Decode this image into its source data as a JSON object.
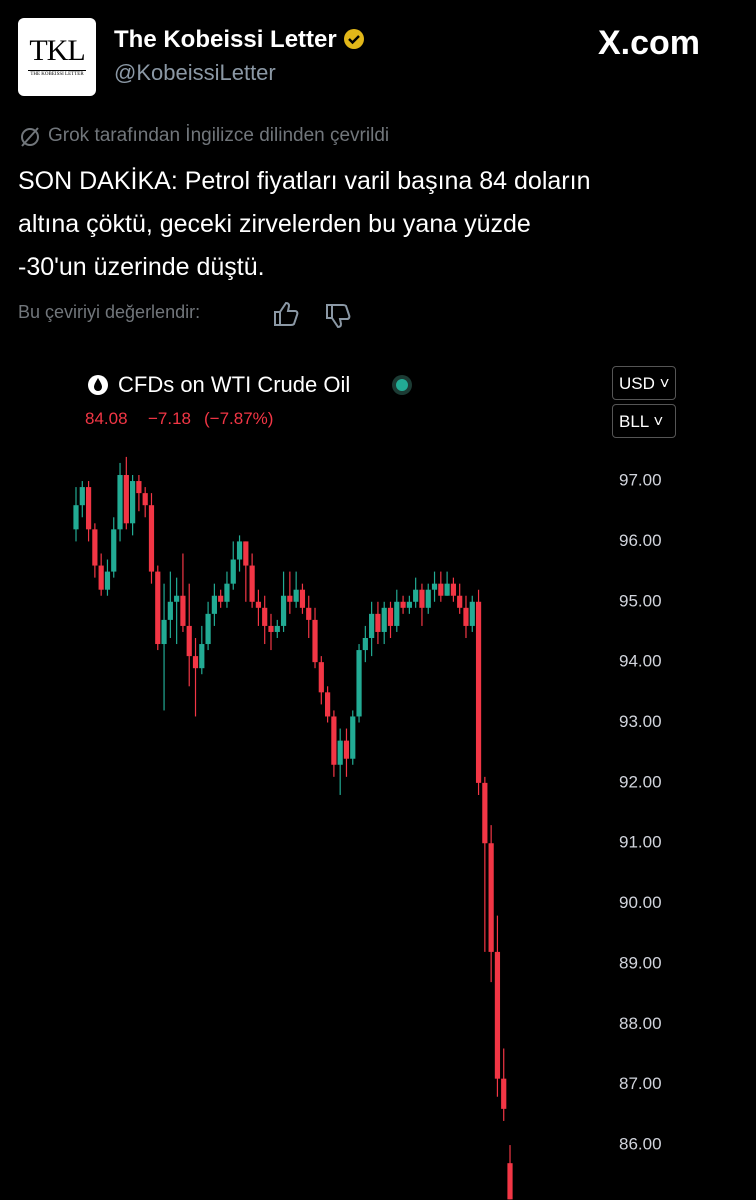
{
  "header": {
    "name": "The Kobeissi Letter",
    "handle": "@KobeissiLetter",
    "logo_text": "TKL",
    "logo_subtext": "THE KOBEISSI LETTER",
    "site": "X.com"
  },
  "tweet": {
    "translation_note": "Grok tarafından İngilizce dilinden çevrildi",
    "lines": [
      "SON DAKİKA: Petrol fiyatları varil başına 84 doların",
      "altına çöktü, geceki zirvelerden bu yana yüzde",
      "-30'un üzerinde düştü."
    ],
    "rate_prompt": "Bu çeviriyi değerlendir:"
  },
  "chart_data": {
    "type": "candlestick",
    "title": "CFDs on WTI Crude Oil",
    "quote": {
      "price": "84.08",
      "change": "−7.18",
      "change_percent": "(−7.87%)"
    },
    "currency": "USD",
    "unit": "BLL",
    "up_color": "#22ab94",
    "down_color": "#f23645",
    "ylim": [
      85.09,
      97.68
    ],
    "yticks": [
      {
        "value": 97,
        "label": "97.00"
      },
      {
        "value": 96,
        "label": "96.00"
      },
      {
        "value": 95,
        "label": "95.00"
      },
      {
        "value": 94,
        "label": "94.00"
      },
      {
        "value": 93,
        "label": "93.00"
      },
      {
        "value": 92,
        "label": "92.00"
      },
      {
        "value": 91,
        "label": "91.00"
      },
      {
        "value": 90,
        "label": "90.00"
      },
      {
        "value": 89,
        "label": "89.00"
      },
      {
        "value": 88,
        "label": "88.00"
      },
      {
        "value": 87,
        "label": "87.00"
      },
      {
        "value": 86,
        "label": "86.00"
      }
    ],
    "open": [
      96.2,
      96.6,
      96.9,
      96.2,
      95.6,
      95.2,
      95.5,
      96.2,
      97.1,
      96.3,
      97.0,
      96.8,
      96.6,
      95.5,
      94.3,
      94.7,
      95.0,
      95.1,
      94.6,
      94.1,
      93.9,
      94.3,
      94.8,
      95.1,
      95.0,
      95.3,
      95.7,
      96.0,
      95.6,
      95.0,
      94.9,
      94.6,
      94.5,
      94.6,
      95.1,
      95.0,
      95.2,
      94.9,
      94.7,
      94.0,
      93.5,
      93.1,
      92.3,
      92.7,
      92.4,
      93.1,
      94.2,
      94.4,
      94.8,
      94.5,
      94.9,
      94.6,
      95.0,
      94.9,
      95.0,
      95.2,
      94.9,
      95.2,
      95.3,
      95.1,
      95.3,
      95.1,
      94.9,
      94.6,
      95.0,
      92.0,
      91.0,
      89.2,
      87.1,
      85.7
    ],
    "high": [
      96.9,
      97.0,
      97.0,
      96.3,
      95.8,
      95.7,
      96.4,
      97.3,
      97.4,
      97.1,
      97.1,
      96.9,
      96.8,
      95.6,
      95.3,
      95.5,
      95.4,
      95.8,
      95.3,
      94.4,
      94.6,
      95.0,
      95.3,
      95.2,
      95.5,
      96.0,
      96.1,
      96.0,
      95.8,
      95.2,
      95.1,
      94.8,
      94.7,
      95.5,
      95.5,
      95.5,
      95.3,
      95.1,
      94.9,
      94.1,
      93.6,
      93.2,
      92.9,
      92.9,
      93.2,
      94.3,
      94.6,
      95.0,
      95.0,
      95.0,
      95.0,
      95.2,
      95.1,
      95.1,
      95.4,
      95.3,
      95.3,
      95.5,
      95.5,
      95.5,
      95.4,
      95.3,
      95.1,
      95.1,
      95.2,
      92.1,
      91.3,
      89.8,
      87.6,
      86.0
    ],
    "low": [
      96.0,
      96.4,
      96.0,
      95.4,
      95.1,
      95.1,
      95.4,
      96.0,
      96.2,
      96.1,
      96.5,
      96.4,
      95.3,
      94.2,
      93.2,
      94.4,
      94.3,
      94.5,
      93.6,
      93.1,
      93.8,
      94.2,
      94.6,
      94.9,
      94.9,
      95.2,
      95.5,
      95.0,
      94.9,
      94.6,
      94.3,
      94.2,
      94.4,
      94.5,
      94.8,
      94.9,
      94.8,
      94.4,
      93.9,
      93.3,
      93.0,
      92.1,
      91.8,
      92.1,
      92.3,
      93.0,
      94.0,
      94.1,
      94.3,
      94.3,
      94.4,
      94.5,
      94.8,
      94.8,
      94.9,
      94.6,
      94.8,
      95.0,
      95.0,
      95.1,
      95.0,
      94.8,
      94.4,
      94.5,
      91.8,
      89.2,
      88.7,
      86.8,
      86.4,
      85.1
    ],
    "close": [
      96.6,
      96.9,
      96.2,
      95.6,
      95.2,
      95.5,
      96.2,
      97.1,
      96.3,
      97.0,
      96.8,
      96.6,
      95.5,
      94.3,
      94.7,
      95.0,
      95.1,
      94.6,
      94.1,
      93.9,
      94.3,
      94.8,
      95.1,
      95.0,
      95.3,
      95.7,
      96.0,
      95.6,
      95.0,
      94.9,
      94.6,
      94.5,
      94.6,
      95.1,
      95.0,
      95.2,
      94.9,
      94.7,
      94.0,
      93.5,
      93.1,
      92.3,
      92.7,
      92.4,
      93.1,
      94.2,
      94.4,
      94.8,
      94.5,
      94.9,
      94.6,
      95.0,
      94.9,
      95.0,
      95.2,
      94.9,
      95.2,
      95.3,
      95.1,
      95.3,
      95.1,
      94.9,
      94.6,
      95.0,
      92.0,
      91.0,
      89.2,
      87.1,
      86.6,
      85.1
    ]
  }
}
